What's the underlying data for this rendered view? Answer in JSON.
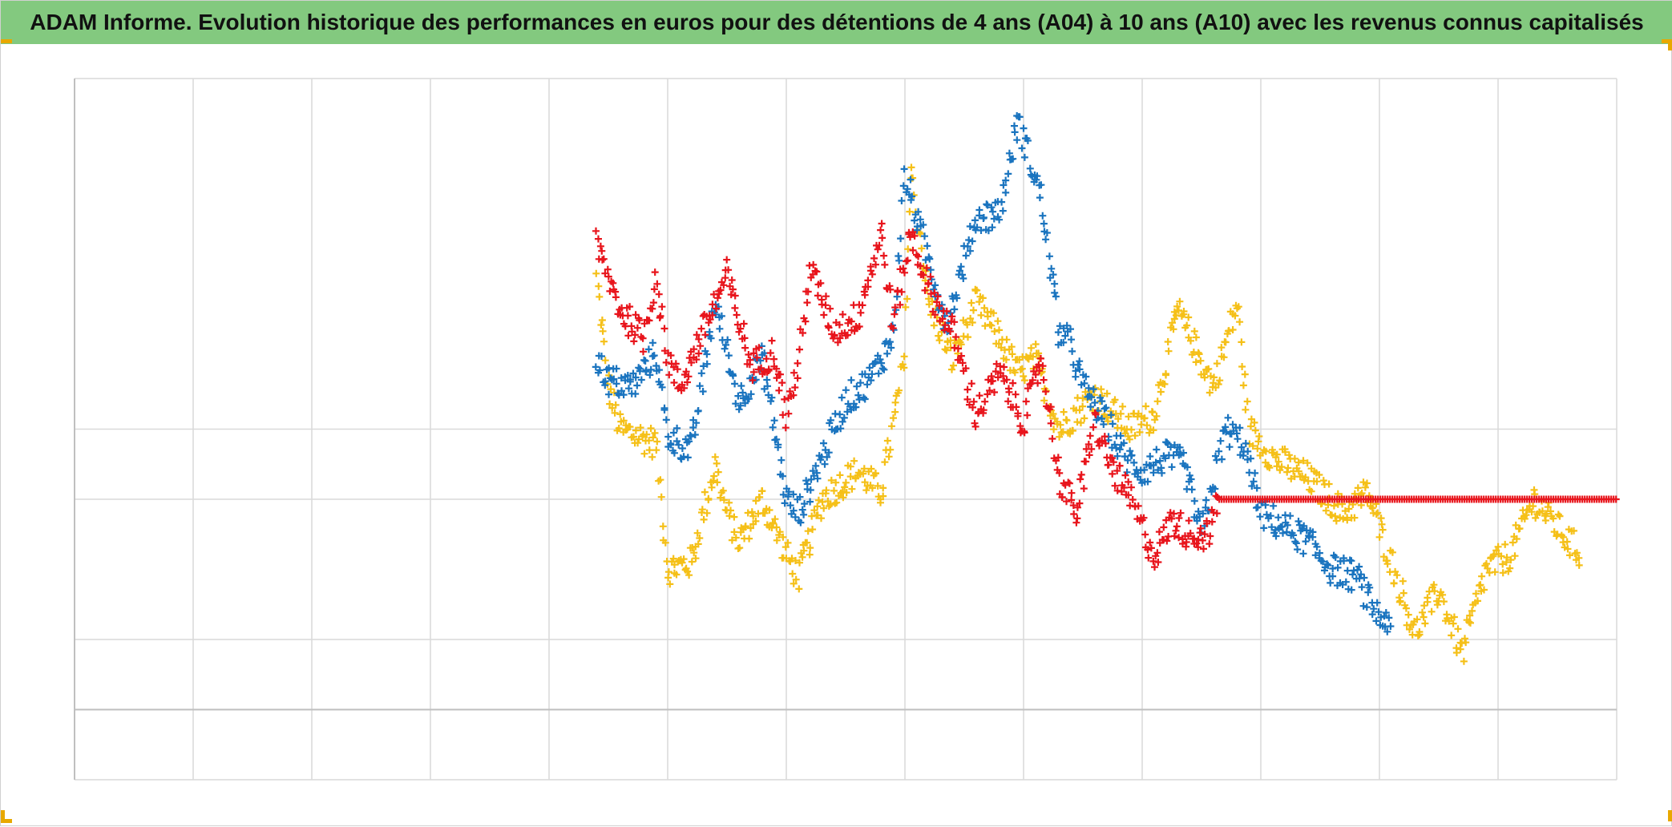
{
  "title": "ADAM Informe. Evolution historique des performances en euros pour des détentions de 4 ans (A04) à 10 ans (A10) avec les revenus connus capitalisés",
  "colors": {
    "title_bg": "#83c97f",
    "grid": "#d9d9d9",
    "corner_marker": "#e8a800"
  },
  "chart_data": {
    "type": "scatter",
    "marker": "plus",
    "grid": true,
    "legend": "none",
    "x_gridlines": 13,
    "y_gridlines": [
      0,
      1,
      2,
      4,
      5
    ],
    "xlim": [
      0,
      13
    ],
    "ylim": [
      0,
      10
    ],
    "series": [
      {
        "color": "#f5c018",
        "keypoints": [
          [
            4.4,
            7.15
          ],
          [
            4.5,
            5.6
          ],
          [
            4.6,
            5.0
          ],
          [
            4.9,
            4.8
          ],
          [
            5.0,
            3.0
          ],
          [
            5.2,
            3.1
          ],
          [
            5.4,
            4.5
          ],
          [
            5.5,
            3.8
          ],
          [
            5.6,
            3.4
          ],
          [
            5.8,
            4.0
          ],
          [
            6.0,
            3.2
          ],
          [
            6.1,
            2.9
          ],
          [
            6.3,
            4.0
          ],
          [
            6.6,
            4.4
          ],
          [
            6.8,
            4.1
          ],
          [
            7.0,
            6.0
          ],
          [
            7.05,
            8.7
          ],
          [
            7.2,
            6.8
          ],
          [
            7.4,
            6.0
          ],
          [
            7.6,
            6.8
          ],
          [
            7.8,
            6.3
          ],
          [
            7.95,
            5.8
          ],
          [
            8.1,
            6.0
          ],
          [
            8.3,
            5.0
          ],
          [
            8.6,
            5.5
          ],
          [
            8.9,
            5.0
          ],
          [
            9.1,
            5.2
          ],
          [
            9.3,
            6.7
          ],
          [
            9.6,
            5.6
          ],
          [
            9.8,
            6.8
          ],
          [
            9.9,
            5.0
          ],
          [
            10.1,
            4.6
          ],
          [
            10.4,
            4.3
          ],
          [
            10.7,
            3.8
          ],
          [
            10.9,
            4.1
          ],
          [
            11.0,
            3.6
          ],
          [
            11.3,
            2.1
          ],
          [
            11.5,
            2.7
          ],
          [
            11.7,
            1.8
          ],
          [
            11.9,
            3.0
          ],
          [
            12.1,
            3.2
          ],
          [
            12.3,
            4.0
          ],
          [
            12.5,
            3.6
          ],
          [
            12.7,
            3.2
          ]
        ]
      },
      {
        "color": "#1a74bf",
        "keypoints": [
          [
            4.4,
            6.0
          ],
          [
            4.5,
            5.7
          ],
          [
            4.7,
            5.6
          ],
          [
            4.9,
            6.1
          ],
          [
            5.0,
            4.9
          ],
          [
            5.2,
            4.7
          ],
          [
            5.4,
            6.8
          ],
          [
            5.6,
            5.4
          ],
          [
            5.8,
            6.0
          ],
          [
            6.0,
            4.0
          ],
          [
            6.1,
            3.8
          ],
          [
            6.3,
            4.6
          ],
          [
            6.5,
            5.4
          ],
          [
            6.7,
            5.7
          ],
          [
            6.9,
            6.3
          ],
          [
            7.0,
            8.6
          ],
          [
            7.15,
            7.7
          ],
          [
            7.35,
            6.5
          ],
          [
            7.6,
            8.0
          ],
          [
            7.8,
            8.1
          ],
          [
            7.95,
            9.4
          ],
          [
            8.15,
            8.3
          ],
          [
            8.3,
            6.4
          ],
          [
            8.4,
            6.2
          ],
          [
            8.5,
            5.6
          ],
          [
            8.7,
            5.1
          ],
          [
            8.85,
            4.6
          ],
          [
            9.0,
            4.4
          ],
          [
            9.2,
            4.6
          ],
          [
            9.35,
            4.5
          ],
          [
            9.5,
            3.5
          ],
          [
            9.7,
            5.0
          ],
          [
            9.85,
            4.8
          ],
          [
            10.0,
            3.8
          ],
          [
            10.2,
            3.6
          ],
          [
            10.4,
            3.4
          ],
          [
            10.6,
            3.0
          ],
          [
            10.8,
            2.9
          ],
          [
            11.0,
            2.3
          ],
          [
            11.1,
            2.3
          ]
        ]
      },
      {
        "color": "#e8151c",
        "keypoints": [
          [
            4.4,
            7.6
          ],
          [
            4.6,
            6.7
          ],
          [
            4.8,
            6.3
          ],
          [
            4.9,
            7.2
          ],
          [
            5.0,
            6.0
          ],
          [
            5.1,
            5.6
          ],
          [
            5.3,
            6.4
          ],
          [
            5.5,
            7.2
          ],
          [
            5.7,
            5.9
          ],
          [
            5.9,
            6.1
          ],
          [
            6.0,
            5.2
          ],
          [
            6.1,
            5.9
          ],
          [
            6.2,
            7.3
          ],
          [
            6.4,
            6.4
          ],
          [
            6.6,
            6.6
          ],
          [
            6.8,
            7.8
          ],
          [
            6.9,
            6.5
          ],
          [
            7.05,
            7.8
          ],
          [
            7.2,
            7.0
          ],
          [
            7.4,
            6.4
          ],
          [
            7.6,
            5.2
          ],
          [
            7.8,
            5.8
          ],
          [
            8.0,
            5.1
          ],
          [
            8.15,
            6.0
          ],
          [
            8.3,
            4.3
          ],
          [
            8.45,
            3.8
          ],
          [
            8.6,
            5.1
          ],
          [
            8.7,
            4.6
          ],
          [
            8.9,
            4.0
          ],
          [
            9.0,
            3.6
          ],
          [
            9.1,
            3.2
          ],
          [
            9.25,
            3.7
          ],
          [
            9.4,
            3.5
          ],
          [
            9.55,
            3.5
          ],
          [
            9.65,
            4.0
          ]
        ],
        "plateau": {
          "x_start": 9.65,
          "x_end": 13.0,
          "y": 4.0
        }
      }
    ]
  }
}
